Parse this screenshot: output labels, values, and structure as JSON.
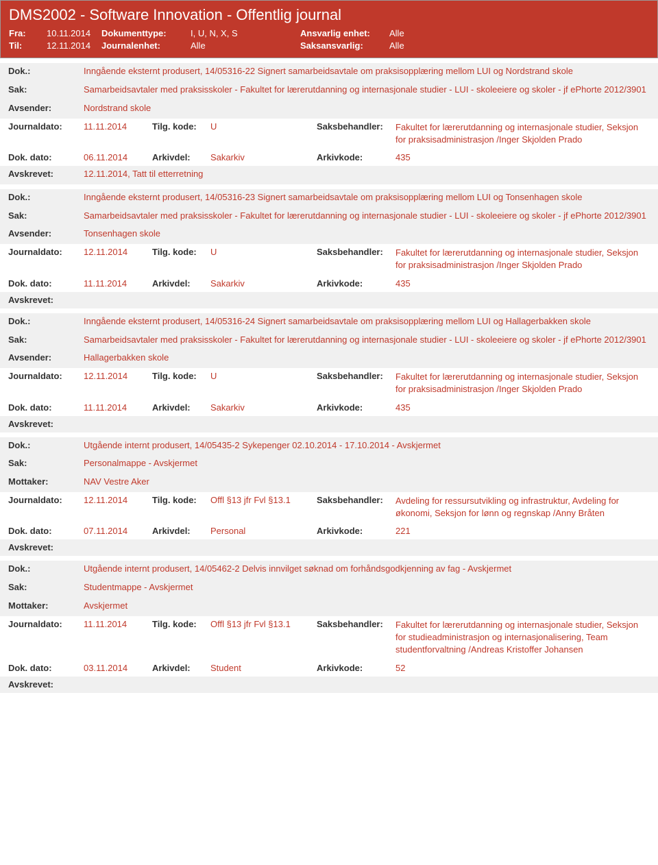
{
  "header": {
    "title": "DMS2002 - Software Innovation - Offentlig journal",
    "fra_label": "Fra:",
    "fra_value": "10.11.2014",
    "til_label": "Til:",
    "til_value": "12.11.2014",
    "doktype_label": "Dokumenttype:",
    "doktype_value": "I, U, N, X, S",
    "journalenhet_label": "Journalenhet:",
    "journalenhet_value": "Alle",
    "ansvarlig_label": "Ansvarlig enhet:",
    "ansvarlig_value": "Alle",
    "saksansvarlig_label": "Saksansvarlig:",
    "saksansvarlig_value": "Alle"
  },
  "labels": {
    "dok": "Dok.:",
    "sak": "Sak:",
    "avsender": "Avsender:",
    "mottaker": "Mottaker:",
    "journaldato": "Journaldato:",
    "tilgkode": "Tilg. kode:",
    "saksbehandler": "Saksbehandler:",
    "dokdato": "Dok. dato:",
    "arkivdel": "Arkivdel:",
    "arkivkode": "Arkivkode:",
    "avskrevet": "Avskrevet:"
  },
  "records": [
    {
      "dok": "Inngående eksternt produsert, 14/05316-22 Signert samarbeidsavtale om praksisopplæring mellom LUI og Nordstrand skole",
      "sak": "Samarbeidsavtaler med praksisskoler - Fakultet for lærerutdanning og internasjonale studier - LUI - skoleeiere og skoler - jf ePhorte 2012/3901",
      "party_label": "Avsender:",
      "party": "Nordstrand skole",
      "journaldato": "11.11.2014",
      "tilgkode": "U",
      "saksbehandler": "Fakultet for lærerutdanning og internasjonale studier, Seksjon for praksisadministrasjon /Inger Skjolden Prado",
      "dokdato": "06.11.2014",
      "arkivdel": "Sakarkiv",
      "arkivkode": "435",
      "avskrevet": "12.11.2014, Tatt til etterretning"
    },
    {
      "dok": "Inngående eksternt produsert, 14/05316-23 Signert samarbeidsavtale om praksisopplæring mellom LUI og Tonsenhagen skole",
      "sak": "Samarbeidsavtaler med praksisskoler - Fakultet for lærerutdanning og internasjonale studier - LUI - skoleeiere og skoler - jf ePhorte 2012/3901",
      "party_label": "Avsender:",
      "party": "Tonsenhagen skole",
      "journaldato": "12.11.2014",
      "tilgkode": "U",
      "saksbehandler": "Fakultet for lærerutdanning og internasjonale studier, Seksjon for praksisadministrasjon /Inger Skjolden Prado",
      "dokdato": "11.11.2014",
      "arkivdel": "Sakarkiv",
      "arkivkode": "435",
      "avskrevet": ""
    },
    {
      "dok": "Inngående eksternt produsert, 14/05316-24 Signert samarbeidsavtale om praksisopplæring mellom LUI og Hallagerbakken skole",
      "sak": "Samarbeidsavtaler med praksisskoler - Fakultet for lærerutdanning og internasjonale studier - LUI - skoleeiere og skoler - jf ePhorte 2012/3901",
      "party_label": "Avsender:",
      "party": "Hallagerbakken skole",
      "journaldato": "12.11.2014",
      "tilgkode": "U",
      "saksbehandler": "Fakultet for lærerutdanning og internasjonale studier, Seksjon for praksisadministrasjon /Inger Skjolden Prado",
      "dokdato": "11.11.2014",
      "arkivdel": "Sakarkiv",
      "arkivkode": "435",
      "avskrevet": ""
    },
    {
      "dok": "Utgående internt produsert, 14/05435-2 Sykepenger 02.10.2014 - 17.10.2014 - Avskjermet",
      "sak": "Personalmappe - Avskjermet",
      "party_label": "Mottaker:",
      "party": "NAV Vestre Aker",
      "journaldato": "12.11.2014",
      "tilgkode": "Offl §13 jfr Fvl §13.1",
      "saksbehandler": "Avdeling for ressursutvikling og infrastruktur, Avdeling for økonomi, Seksjon for lønn og regnskap /Anny Bråten",
      "dokdato": "07.11.2014",
      "arkivdel": "Personal",
      "arkivkode": "221",
      "avskrevet": ""
    },
    {
      "dok": "Utgående internt produsert, 14/05462-2 Delvis innvilget søknad om forhåndsgodkjenning av fag - Avskjermet",
      "sak": "Studentmappe - Avskjermet",
      "party_label": "Mottaker:",
      "party": "Avskjermet",
      "journaldato": "11.11.2014",
      "tilgkode": "Offl §13 jfr Fvl §13.1",
      "saksbehandler": "Fakultet for lærerutdanning og internasjonale studier, Seksjon for studieadministrasjon og internasjonalisering, Team studentforvaltning /Andreas Kristoffer Johansen",
      "dokdato": "03.11.2014",
      "arkivdel": "Student",
      "arkivkode": "52",
      "avskrevet": ""
    }
  ]
}
